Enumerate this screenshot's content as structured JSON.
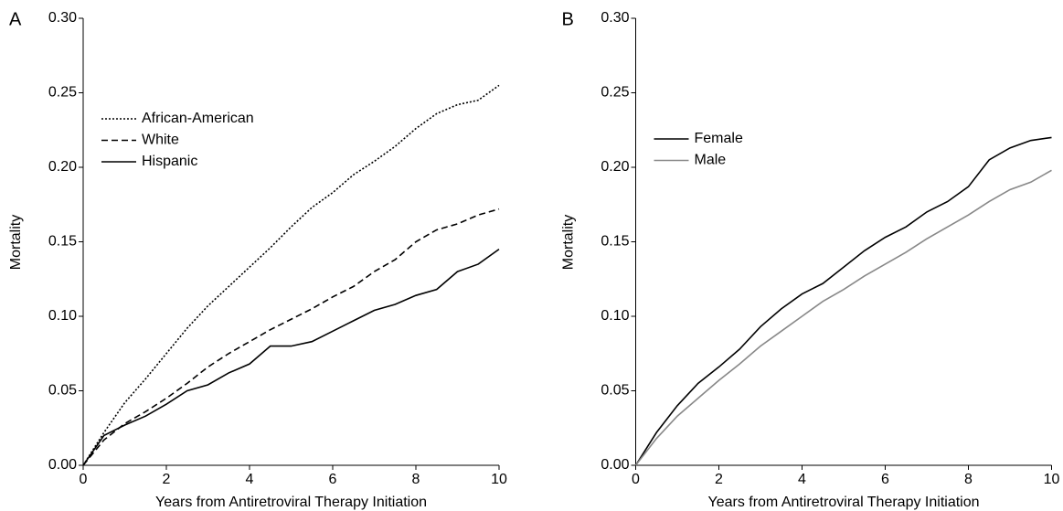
{
  "chart_data": [
    {
      "type": "line",
      "panel_label": "A",
      "xlabel": "Years from Antiretroviral Therapy Initiation",
      "ylabel": "Mortality",
      "x": [
        0,
        0.5,
        1,
        1.5,
        2,
        2.5,
        3,
        3.5,
        4,
        4.5,
        5,
        5.5,
        6,
        6.5,
        7,
        7.5,
        8,
        8.5,
        9,
        9.5,
        10
      ],
      "xlim": [
        0,
        10
      ],
      "xticks": [
        0,
        2,
        4,
        6,
        8,
        10
      ],
      "ylim": [
        0,
        0.3
      ],
      "yticks": [
        {
          "value": 0,
          "label": "0.00"
        },
        {
          "value": 0.05,
          "label": "0.05"
        },
        {
          "value": 0.1,
          "label": "0.10"
        },
        {
          "value": 0.15,
          "label": "0.15"
        },
        {
          "value": 0.2,
          "label": "0.20"
        },
        {
          "value": 0.25,
          "label": "0.25"
        },
        {
          "value": 0.3,
          "label": "0.30"
        }
      ],
      "legend": "upper left",
      "series": [
        {
          "name": "African-American",
          "color": "#000000",
          "line_style": "dotted",
          "values": [
            0,
            0.022,
            0.042,
            0.058,
            0.075,
            0.092,
            0.107,
            0.12,
            0.133,
            0.146,
            0.16,
            0.173,
            0.183,
            0.195,
            0.204,
            0.214,
            0.226,
            0.236,
            0.242,
            0.245,
            0.255
          ]
        },
        {
          "name": "White",
          "color": "#000000",
          "line_style": "dashed",
          "values": [
            0,
            0.017,
            0.028,
            0.036,
            0.045,
            0.055,
            0.066,
            0.075,
            0.083,
            0.091,
            0.098,
            0.105,
            0.113,
            0.12,
            0.13,
            0.138,
            0.15,
            0.158,
            0.162,
            0.168,
            0.172
          ]
        },
        {
          "name": "Hispanic",
          "color": "#000000",
          "line_style": "solid",
          "values": [
            0,
            0.02,
            0.027,
            0.033,
            0.041,
            0.05,
            0.054,
            0.062,
            0.068,
            0.08,
            0.08,
            0.083,
            0.09,
            0.097,
            0.104,
            0.108,
            0.114,
            0.118,
            0.13,
            0.135,
            0.145
          ]
        }
      ]
    },
    {
      "type": "line",
      "panel_label": "B",
      "xlabel": "Years from Antiretroviral Therapy Initiation",
      "ylabel": "Mortality",
      "x": [
        0,
        0.5,
        1,
        1.5,
        2,
        2.5,
        3,
        3.5,
        4,
        4.5,
        5,
        5.5,
        6,
        6.5,
        7,
        7.5,
        8,
        8.5,
        9,
        9.5,
        10
      ],
      "xlim": [
        0,
        10
      ],
      "xticks": [
        0,
        2,
        4,
        6,
        8,
        10
      ],
      "ylim": [
        0,
        0.3
      ],
      "yticks": [
        {
          "value": 0,
          "label": "0.00"
        },
        {
          "value": 0.05,
          "label": "0.05"
        },
        {
          "value": 0.1,
          "label": "0.10"
        },
        {
          "value": 0.15,
          "label": "0.15"
        },
        {
          "value": 0.2,
          "label": "0.20"
        },
        {
          "value": 0.25,
          "label": "0.25"
        },
        {
          "value": 0.3,
          "label": "0.30"
        }
      ],
      "legend": "upper left",
      "series": [
        {
          "name": "Female",
          "color": "#000000",
          "line_style": "solid",
          "values": [
            0,
            0.022,
            0.04,
            0.055,
            0.066,
            0.078,
            0.093,
            0.105,
            0.115,
            0.122,
            0.133,
            0.144,
            0.153,
            0.16,
            0.17,
            0.177,
            0.187,
            0.205,
            0.213,
            0.218,
            0.22
          ]
        },
        {
          "name": "Male",
          "color": "#888888",
          "line_style": "solid",
          "values": [
            0,
            0.018,
            0.033,
            0.045,
            0.057,
            0.068,
            0.08,
            0.09,
            0.1,
            0.11,
            0.118,
            0.127,
            0.135,
            0.143,
            0.152,
            0.16,
            0.168,
            0.177,
            0.185,
            0.19,
            0.198
          ]
        }
      ]
    }
  ]
}
